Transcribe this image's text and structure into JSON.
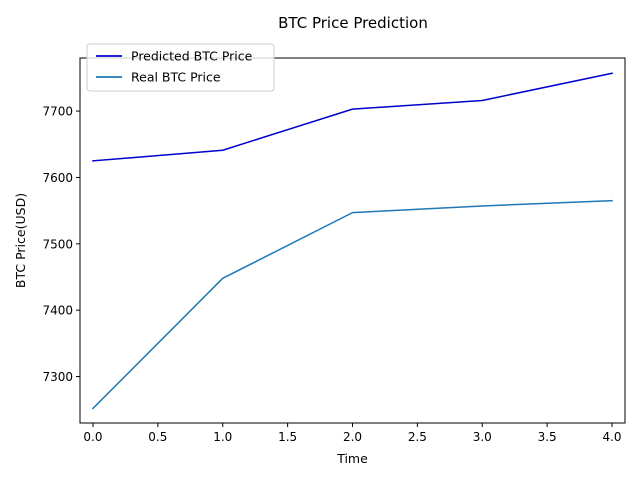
{
  "chart_data": {
    "type": "line",
    "title": "BTC Price Prediction",
    "xlabel": "Time",
    "ylabel": "BTC Price(USD)",
    "xlim": [
      -0.1,
      4.1
    ],
    "ylim": [
      7230,
      7780
    ],
    "xticks": [
      0.0,
      0.5,
      1.0,
      1.5,
      2.0,
      2.5,
      3.0,
      3.5,
      4.0
    ],
    "xtick_labels": [
      "0.0",
      "0.5",
      "1.0",
      "1.5",
      "2.0",
      "2.5",
      "3.0",
      "3.5",
      "4.0"
    ],
    "yticks": [
      7300,
      7400,
      7500,
      7600,
      7700
    ],
    "ytick_labels": [
      "7300",
      "7400",
      "7500",
      "7600",
      "7700"
    ],
    "grid": false,
    "legend_position": "top-left",
    "series": [
      {
        "name": "Predicted BTC Price",
        "color": "#0000cc",
        "x": [
          0,
          1,
          2,
          3,
          4
        ],
        "values": [
          7625,
          7641,
          7703,
          7716,
          7757
        ]
      },
      {
        "name": "Real BTC Price",
        "color": "#1f77b4",
        "x": [
          0,
          1,
          2,
          3,
          4
        ],
        "values": [
          7252,
          7448,
          7547,
          7557,
          7565
        ]
      }
    ]
  }
}
